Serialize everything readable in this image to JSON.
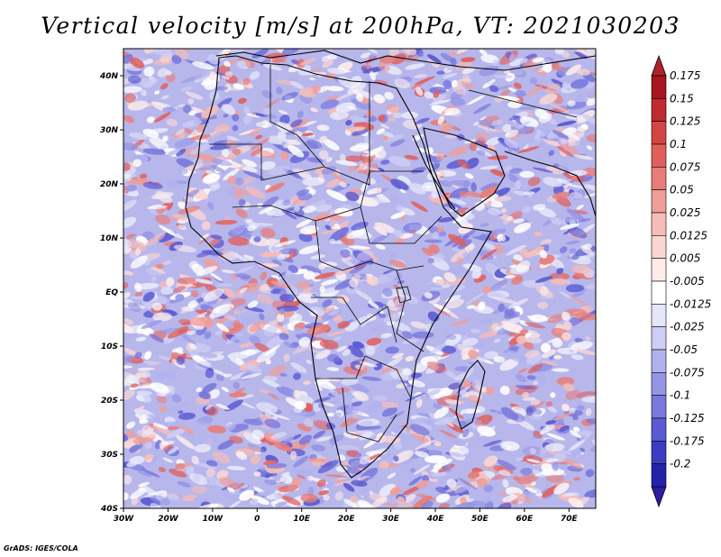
{
  "title": "Vertical velocity [m/s] at 200hPa, VT: 2021030203",
  "credit": "GrADS: IGES/COLA",
  "map": {
    "lon_range": [
      -30,
      76
    ],
    "lat_range": [
      -40,
      45
    ],
    "lon_ticks": [
      {
        "value": -30,
        "label": "30W"
      },
      {
        "value": -20,
        "label": "20W"
      },
      {
        "value": -10,
        "label": "10W"
      },
      {
        "value": 0,
        "label": "0"
      },
      {
        "value": 10,
        "label": "10E"
      },
      {
        "value": 20,
        "label": "20E"
      },
      {
        "value": 30,
        "label": "30E"
      },
      {
        "value": 40,
        "label": "40E"
      },
      {
        "value": 50,
        "label": "50E"
      },
      {
        "value": 60,
        "label": "60E"
      },
      {
        "value": 70,
        "label": "70E"
      }
    ],
    "lat_ticks": [
      {
        "value": 40,
        "label": "40N"
      },
      {
        "value": 30,
        "label": "30N"
      },
      {
        "value": 20,
        "label": "20N"
      },
      {
        "value": 10,
        "label": "10N"
      },
      {
        "value": 0,
        "label": "EQ"
      },
      {
        "value": -10,
        "label": "10S"
      },
      {
        "value": -20,
        "label": "20S"
      },
      {
        "value": -30,
        "label": "30S"
      },
      {
        "value": -40,
        "label": "40S"
      }
    ]
  },
  "colorbar": {
    "levels": [
      {
        "label": "0.175",
        "color": "#a51622"
      },
      {
        "label": "0.15",
        "color": "#c12a2f"
      },
      {
        "label": "0.125",
        "color": "#d54444"
      },
      {
        "label": "0.1",
        "color": "#e05f5c"
      },
      {
        "label": "0.075",
        "color": "#e87d78"
      },
      {
        "label": "0.05",
        "color": "#f09e98"
      },
      {
        "label": "0.025",
        "color": "#f6bdb8"
      },
      {
        "label": "0.0125",
        "color": "#fad6d3"
      },
      {
        "label": "0.005",
        "color": "#fdecea"
      },
      {
        "label": "-0.005",
        "color": "#ffffff"
      },
      {
        "label": "-0.0125",
        "color": "#e6e6fa"
      },
      {
        "label": "-0.025",
        "color": "#cdcdf5"
      },
      {
        "label": "-0.05",
        "color": "#b1b1ee"
      },
      {
        "label": "-0.075",
        "color": "#9595e6"
      },
      {
        "label": "-0.1",
        "color": "#7878dd"
      },
      {
        "label": "-0.125",
        "color": "#5a5ad2"
      },
      {
        "label": "-0.175",
        "color": "#3c3cc3"
      },
      {
        "label": "-0.2",
        "color": "#2323aa"
      }
    ],
    "top_color": "#b0222a",
    "bottom_color": "#2a1ea3"
  }
}
